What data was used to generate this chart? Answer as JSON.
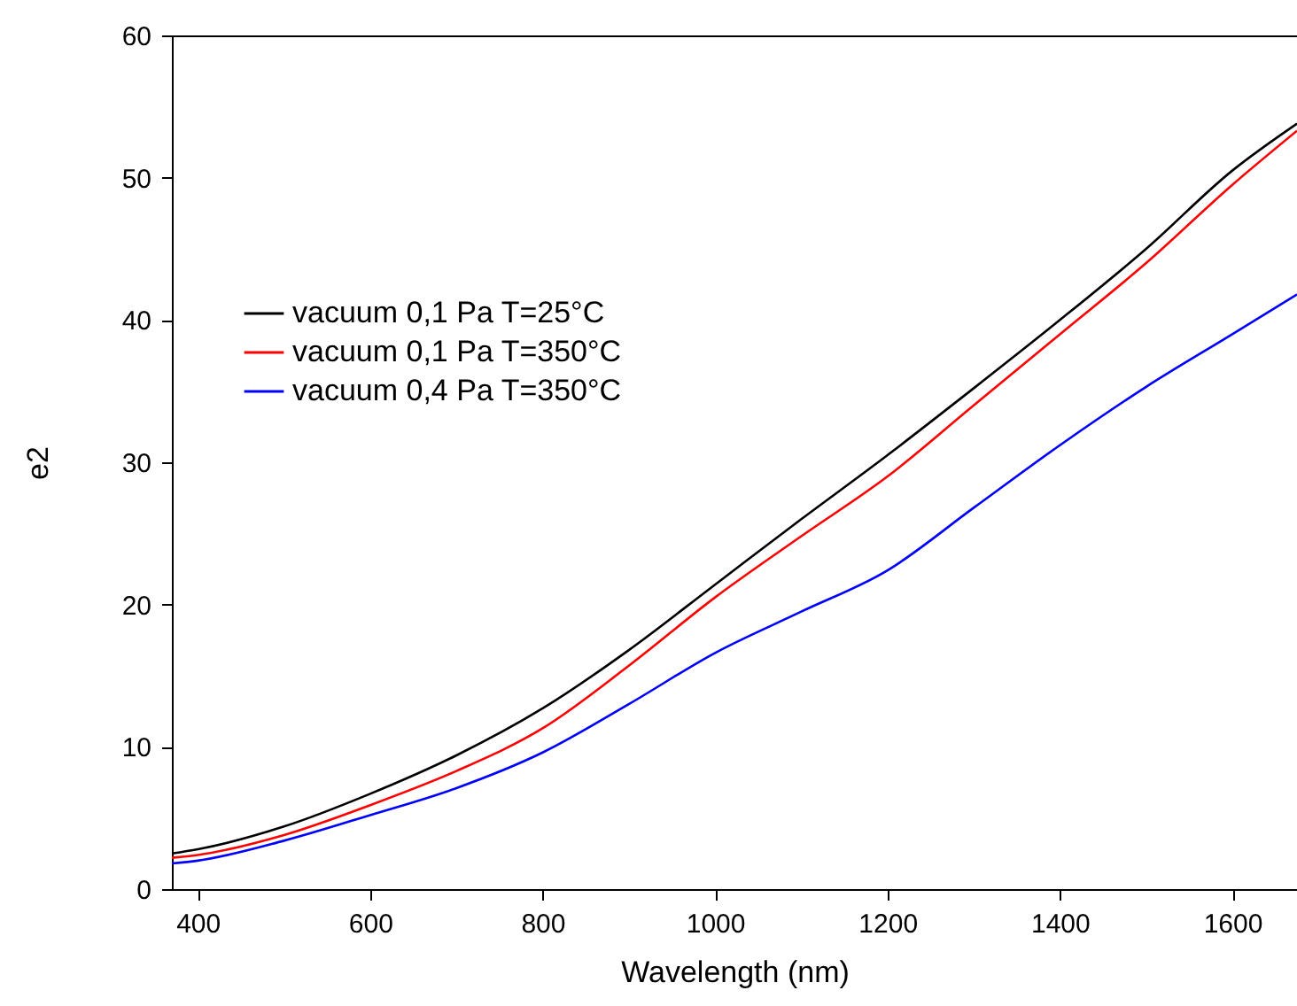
{
  "chart_data": {
    "type": "line",
    "xlabel": "Wavelength (nm)",
    "ylabel": "e2",
    "x": [
      370,
      400,
      500,
      600,
      700,
      800,
      900,
      1000,
      1100,
      1200,
      1300,
      1400,
      1500,
      1600,
      1675
    ],
    "series": [
      {
        "name": "vacuum 0,1 Pa T=25°C",
        "color": "#000000",
        "values": [
          2.5,
          2.8,
          4.4,
          6.7,
          9.4,
          12.7,
          16.8,
          21.4,
          26,
          30.5,
          35.2,
          40,
          45,
          50.5,
          53.8
        ]
      },
      {
        "name": "vacuum 0,1 Pa T=350°C",
        "color": "#ff0000",
        "values": [
          2.2,
          2.4,
          3.8,
          5.9,
          8.3,
          11.3,
          15.7,
          20.5,
          24.8,
          29,
          34,
          39,
          44,
          49.5,
          53.3
        ]
      },
      {
        "name": "vacuum 0,4 Pa T=350°C",
        "color": "#0000ff",
        "values": [
          1.8,
          2,
          3.4,
          5.2,
          7.1,
          9.6,
          13,
          16.6,
          19.5,
          22.4,
          26.8,
          31.2,
          35.3,
          39,
          41.8
        ]
      }
    ],
    "xlim": [
      370,
      1675
    ],
    "xticks": [
      400,
      600,
      800,
      1000,
      1200,
      1400,
      1600
    ],
    "ylim": [
      0,
      60
    ],
    "yticks": [
      0,
      10,
      20,
      30,
      40,
      50,
      60
    ],
    "grid": false,
    "legend": "left",
    "marker": "none",
    "line_style": "solid"
  }
}
